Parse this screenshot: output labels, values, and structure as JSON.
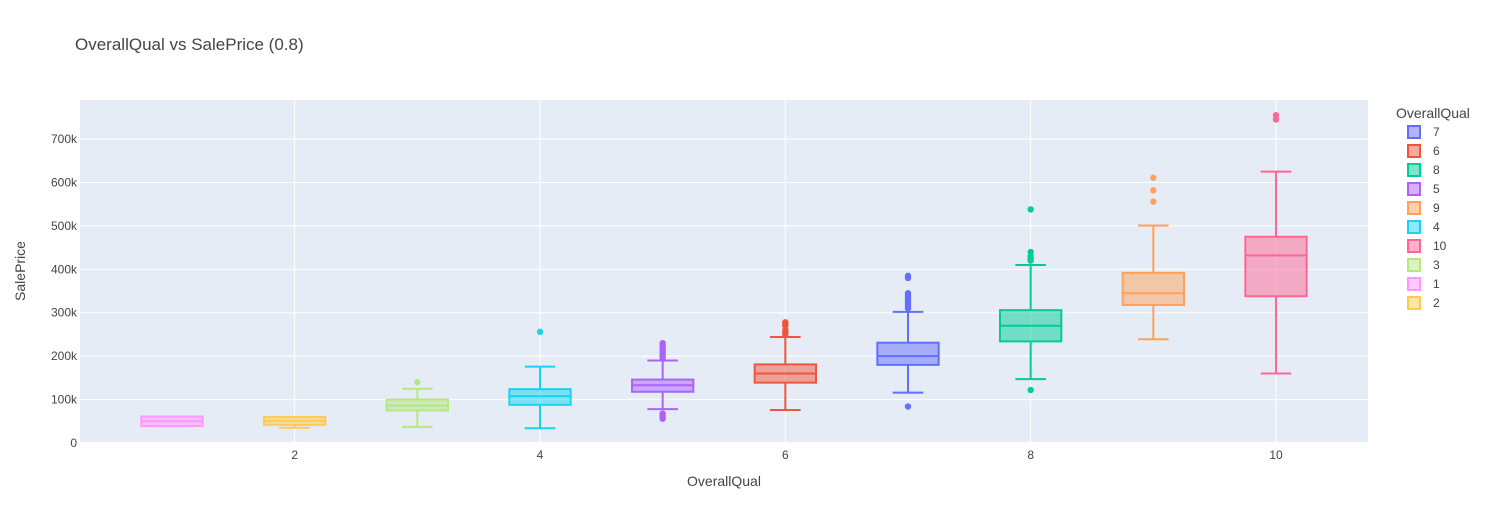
{
  "chart_data": {
    "type": "box",
    "title": "OverallQual vs SalePrice (0.8)",
    "xlabel": "OverallQual",
    "ylabel": "SalePrice",
    "xlim": [
      0.25,
      10.75
    ],
    "ylim": [
      0,
      790000
    ],
    "x_ticks": [
      2,
      4,
      6,
      8,
      10
    ],
    "y_ticks": [
      {
        "value": 0,
        "label": "0"
      },
      {
        "value": 100000,
        "label": "100k"
      },
      {
        "value": 200000,
        "label": "200k"
      },
      {
        "value": 300000,
        "label": "300k"
      },
      {
        "value": 400000,
        "label": "400k"
      },
      {
        "value": 500000,
        "label": "500k"
      },
      {
        "value": 600000,
        "label": "600k"
      },
      {
        "value": 700000,
        "label": "700k"
      }
    ],
    "grid": true,
    "legend": {
      "title": "OverallQual",
      "placement": "right"
    },
    "series": [
      {
        "name": "7",
        "x": 7,
        "color": "#636efa",
        "lowerfence": 116000,
        "q1": 180000,
        "median": 200000,
        "q3": 231000,
        "upperfence": 302000,
        "outliers": [
          84000,
          310000,
          315000,
          320000,
          325000,
          330000,
          335000,
          340000,
          345000,
          380000,
          385000
        ]
      },
      {
        "name": "6",
        "x": 6,
        "color": "#EF553B",
        "lowerfence": 76000,
        "q1": 139000,
        "median": 160000,
        "q3": 181000,
        "upperfence": 244000,
        "outliers": [
          250000,
          255000,
          260000,
          270000,
          275000,
          278000
        ]
      },
      {
        "name": "8",
        "x": 8,
        "color": "#00cc96",
        "lowerfence": 147000,
        "q1": 234000,
        "median": 270000,
        "q3": 306000,
        "upperfence": 410000,
        "outliers": [
          122000,
          420000,
          425000,
          430000,
          440000,
          538000
        ]
      },
      {
        "name": "5",
        "x": 5,
        "color": "#ab63fa",
        "lowerfence": 78000,
        "q1": 118000,
        "median": 133000,
        "q3": 146000,
        "upperfence": 190000,
        "outliers": [
          56000,
          60000,
          65000,
          68000,
          195000,
          200000,
          205000,
          210000,
          215000,
          220000,
          225000,
          230000
        ]
      },
      {
        "name": "9",
        "x": 9,
        "color": "#FFA15A",
        "lowerfence": 239000,
        "q1": 318000,
        "median": 345000,
        "q3": 392000,
        "upperfence": 501000,
        "outliers": [
          556000,
          582000,
          611000
        ]
      },
      {
        "name": "4",
        "x": 4,
        "color": "#19d3f3",
        "lowerfence": 34000,
        "q1": 88000,
        "median": 108000,
        "q3": 124000,
        "upperfence": 176000,
        "outliers": [
          256000
        ]
      },
      {
        "name": "10",
        "x": 10,
        "color": "#FF6692",
        "lowerfence": 160000,
        "q1": 338000,
        "median": 432000,
        "q3": 475000,
        "upperfence": 625000,
        "outliers": [
          745000,
          755000
        ]
      },
      {
        "name": "3",
        "x": 3,
        "color": "#B6E880",
        "lowerfence": 37000,
        "q1": 75000,
        "median": 86000,
        "q3": 100000,
        "upperfence": 125000,
        "outliers": [
          140000
        ]
      },
      {
        "name": "1",
        "x": 1,
        "color": "#FF97FF",
        "lowerfence": 39000,
        "q1": 39000,
        "median": 50000,
        "q3": 61000,
        "upperfence": 61000,
        "outliers": []
      },
      {
        "name": "2",
        "x": 2,
        "color": "#FECB52",
        "lowerfence": 35000,
        "q1": 42000,
        "median": 51000,
        "q3": 60000,
        "upperfence": 60000,
        "outliers": []
      }
    ]
  }
}
